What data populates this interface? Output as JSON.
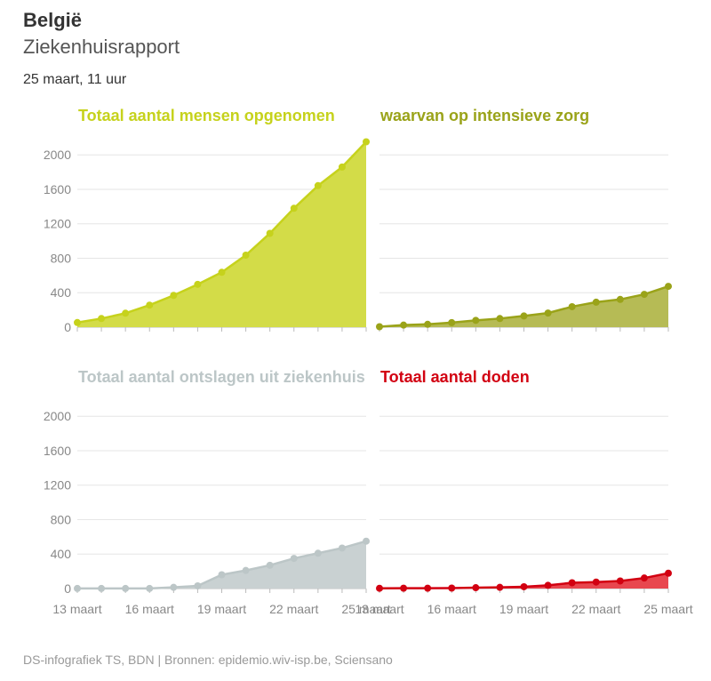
{
  "header": {
    "title": "België",
    "subtitle": "Ziekenhuisrapport",
    "date": "25 maart, 11 uur"
  },
  "source": "DS-infografiek TS, BDN | Bronnen: epidemio.wiv-isp.be, Sciensano",
  "chart_data": [
    {
      "type": "area",
      "title": "Totaal aantal mensen opgenomen",
      "color": "#c6d21c",
      "fill": "#d3dc48",
      "values": [
        54,
        100,
        162,
        256,
        369,
        497,
        637,
        836,
        1089,
        1380,
        1643,
        1859,
        2152
      ],
      "ylim": [
        0,
        2250
      ],
      "yticks": [
        0,
        400,
        800,
        1200,
        1600,
        2000
      ],
      "y_tick_labels": true,
      "grid": true
    },
    {
      "type": "area",
      "title": "waarvan op intensieve zorg",
      "color": "#9aa319",
      "fill": "#b6bb55",
      "values": [
        5,
        24,
        33,
        53,
        79,
        100,
        130,
        164,
        238,
        290,
        322,
        381,
        474
      ],
      "ylim": [
        0,
        2250
      ],
      "yticks": [
        0,
        400,
        800,
        1200,
        1600,
        2000
      ],
      "y_tick_labels": false,
      "grid": true
    },
    {
      "type": "area",
      "title": "Totaal aantal ontslagen uit ziekenhuis",
      "color": "#bcc6c7",
      "fill": "#c9d1d2",
      "categories": [
        "13 maart",
        null,
        null,
        "16 maart",
        null,
        null,
        "19 maart",
        null,
        null,
        "22 maart",
        null,
        null,
        "25 maart"
      ],
      "values": [
        1,
        1,
        1,
        1,
        14,
        31,
        160,
        210,
        270,
        350,
        410,
        470,
        550
      ],
      "ylim": [
        0,
        2250
      ],
      "yticks": [
        0,
        400,
        800,
        1200,
        1600,
        2000
      ],
      "y_tick_labels": true,
      "grid": true
    },
    {
      "type": "area",
      "title": "Totaal aantal doden",
      "color": "#d20011",
      "fill": "#e8474f",
      "categories": [
        "13 maart",
        null,
        null,
        "16 maart",
        null,
        null,
        "19 maart",
        null,
        null,
        "22 maart",
        null,
        null,
        "25 maart"
      ],
      "values": [
        3,
        4,
        4,
        5,
        10,
        14,
        21,
        37,
        67,
        75,
        88,
        122,
        178
      ],
      "ylim": [
        0,
        2250
      ],
      "yticks": [
        0,
        400,
        800,
        1200,
        1600,
        2000
      ],
      "y_tick_labels": false,
      "grid": true
    }
  ]
}
